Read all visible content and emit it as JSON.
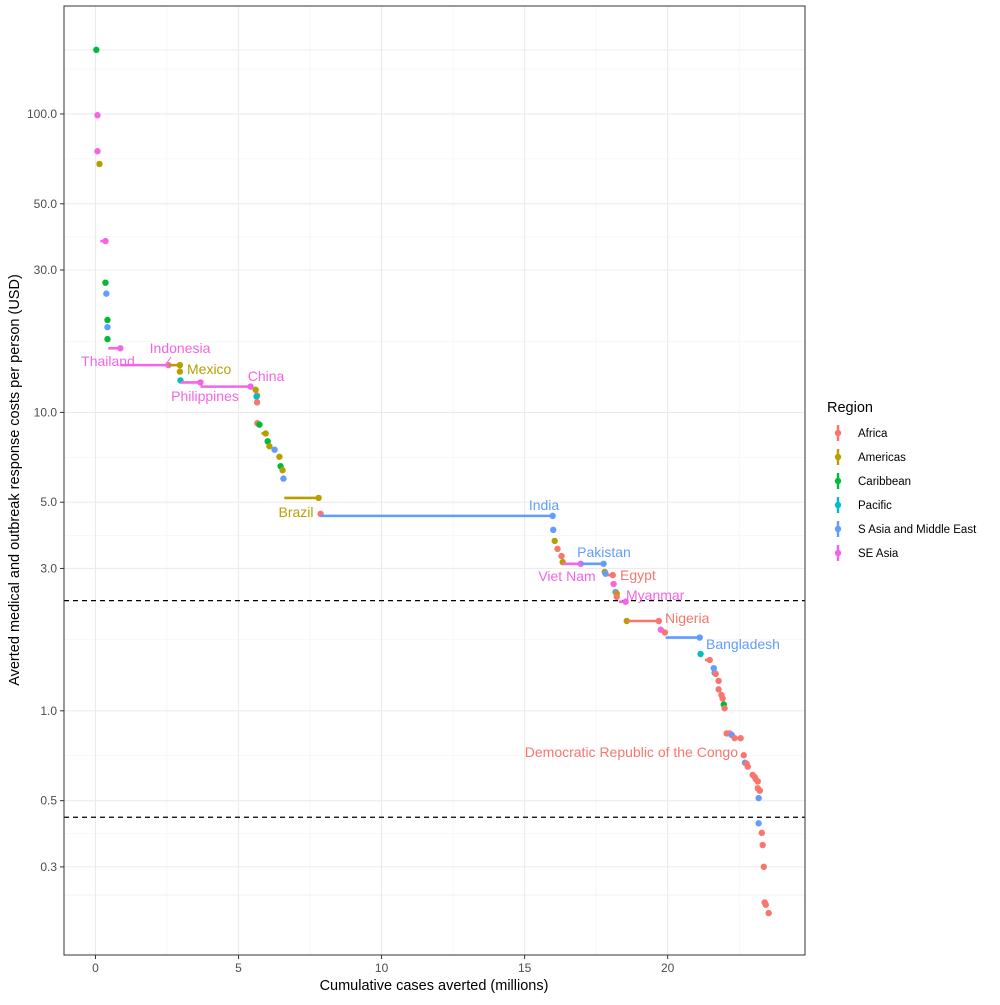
{
  "chart_data": {
    "type": "scatter",
    "xlabel": "Cumulative cases averted (millions)",
    "ylabel": "Averted medical and outbreak response costs per person (USD)",
    "x_scale": "linear",
    "y_scale": "log",
    "xlim": [
      -1.1,
      24.8
    ],
    "ylim": [
      0.152,
      230
    ],
    "x_ticks": [
      0,
      5,
      10,
      15,
      20
    ],
    "x_tick_labels": [
      "0",
      "5",
      "10",
      "15",
      "20"
    ],
    "y_ticks": [
      0.3,
      0.5,
      1.0,
      3.0,
      5.0,
      10.0,
      30.0,
      50.0,
      100.0
    ],
    "y_tick_labels": [
      "0.3",
      "0.5",
      "1.0",
      "3.0",
      "5.0",
      "10.0",
      "30.0",
      "50.0",
      "100.0"
    ],
    "grid": true,
    "reference_lines_y": [
      2.34,
      0.44
    ],
    "legend": {
      "title": "Region",
      "placement": "right",
      "entries": [
        "Africa",
        "Americas",
        "Caribbean",
        "Pacific",
        "S Asia and Middle East",
        "SE Asia"
      ],
      "colors": [
        "#F8766D",
        "#B79F00",
        "#00BA38",
        "#00BFC4",
        "#619CFF",
        "#F564E3"
      ]
    },
    "series_note": "each point: segment from x0 to x1 (cumulative cases) at cost y, region index r",
    "points": [
      {
        "x0": 0.03,
        "x1": 0.03,
        "y": 164,
        "r": 2
      },
      {
        "x0": 0.07,
        "x1": 0.07,
        "y": 99,
        "r": 5
      },
      {
        "x0": 0.07,
        "x1": 0.07,
        "y": 75,
        "r": 5
      },
      {
        "x0": 0.12,
        "x1": 0.14,
        "y": 68,
        "r": 1
      },
      {
        "x0": 0.17,
        "x1": 0.35,
        "y": 37.5,
        "r": 5
      },
      {
        "x0": 0.35,
        "x1": 0.35,
        "y": 27.2,
        "r": 2
      },
      {
        "x0": 0.38,
        "x1": 0.38,
        "y": 25,
        "r": 4
      },
      {
        "x0": 0.42,
        "x1": 0.42,
        "y": 20.4,
        "r": 2
      },
      {
        "x0": 0.42,
        "x1": 0.42,
        "y": 19.3,
        "r": 4
      },
      {
        "x0": 0.42,
        "x1": 0.42,
        "y": 17.6,
        "r": 2
      },
      {
        "x0": 0.45,
        "x1": 0.87,
        "y": 16.4,
        "r": 5,
        "label": "Thailand"
      },
      {
        "x0": 0.87,
        "x1": 2.55,
        "y": 14.4,
        "r": 5,
        "label": "Indonesia"
      },
      {
        "x0": 2.55,
        "x1": 2.95,
        "y": 14.4,
        "r": 1,
        "label": "Mexico"
      },
      {
        "x0": 2.95,
        "x1": 2.95,
        "y": 13.7,
        "r": 1
      },
      {
        "x0": 2.97,
        "x1": 2.97,
        "y": 12.8,
        "r": 3
      },
      {
        "x0": 2.97,
        "x1": 3.67,
        "y": 12.6,
        "r": 5,
        "label": "Philippines"
      },
      {
        "x0": 3.67,
        "x1": 5.42,
        "y": 12.2,
        "r": 5,
        "label": "China"
      },
      {
        "x0": 5.5,
        "x1": 5.6,
        "y": 11.9,
        "r": 1
      },
      {
        "x0": 5.65,
        "x1": 5.65,
        "y": 11.4,
        "r": 0
      },
      {
        "x0": 5.63,
        "x1": 5.63,
        "y": 11.3,
        "r": 3
      },
      {
        "x0": 5.65,
        "x1": 5.65,
        "y": 10.8,
        "r": 0
      },
      {
        "x0": 5.66,
        "x1": 5.66,
        "y": 9.2,
        "r": 0
      },
      {
        "x0": 5.73,
        "x1": 5.73,
        "y": 9.1,
        "r": 2
      },
      {
        "x0": 5.8,
        "x1": 5.95,
        "y": 8.5,
        "r": 1
      },
      {
        "x0": 6.02,
        "x1": 6.02,
        "y": 8.0,
        "r": 2
      },
      {
        "x0": 6.08,
        "x1": 6.08,
        "y": 7.7,
        "r": 1
      },
      {
        "x0": 6.26,
        "x1": 6.26,
        "y": 7.5,
        "r": 4
      },
      {
        "x0": 6.33,
        "x1": 6.43,
        "y": 7.1,
        "r": 1
      },
      {
        "x0": 6.47,
        "x1": 6.47,
        "y": 6.6,
        "r": 2
      },
      {
        "x0": 6.54,
        "x1": 6.54,
        "y": 6.4,
        "r": 1
      },
      {
        "x0": 6.57,
        "x1": 6.57,
        "y": 6.0,
        "r": 4
      },
      {
        "x0": 6.6,
        "x1": 7.8,
        "y": 5.17,
        "r": 1,
        "label": "Brazil"
      },
      {
        "x0": 7.87,
        "x1": 7.87,
        "y": 4.57,
        "r": 0
      },
      {
        "x0": 7.87,
        "x1": 15.98,
        "y": 4.5,
        "r": 4,
        "label": "India"
      },
      {
        "x0": 16.0,
        "x1": 16.0,
        "y": 4.04,
        "r": 4
      },
      {
        "x0": 16.05,
        "x1": 16.05,
        "y": 3.71,
        "r": 1
      },
      {
        "x0": 16.15,
        "x1": 16.15,
        "y": 3.49,
        "r": 0
      },
      {
        "x0": 16.29,
        "x1": 16.29,
        "y": 3.3,
        "r": 0
      },
      {
        "x0": 16.33,
        "x1": 16.33,
        "y": 3.15,
        "r": 1
      },
      {
        "x0": 16.33,
        "x1": 16.96,
        "y": 3.11,
        "r": 5,
        "label": "Viet Nam"
      },
      {
        "x0": 16.96,
        "x1": 17.76,
        "y": 3.11,
        "r": 4,
        "label": "Pakistan"
      },
      {
        "x0": 17.8,
        "x1": 17.8,
        "y": 2.92,
        "r": 1
      },
      {
        "x0": 17.83,
        "x1": 17.83,
        "y": 2.88,
        "r": 4
      },
      {
        "x0": 17.9,
        "x1": 18.08,
        "y": 2.85,
        "r": 0,
        "label": "Egypt"
      },
      {
        "x0": 18.11,
        "x1": 18.11,
        "y": 2.66,
        "r": 5
      },
      {
        "x0": 18.18,
        "x1": 18.18,
        "y": 2.5,
        "r": 4
      },
      {
        "x0": 18.22,
        "x1": 18.22,
        "y": 2.47,
        "r": 1
      },
      {
        "x0": 18.22,
        "x1": 18.22,
        "y": 2.41,
        "r": 0
      },
      {
        "x0": 18.3,
        "x1": 18.53,
        "y": 2.32,
        "r": 5,
        "label": "Myanmar"
      },
      {
        "x0": 18.57,
        "x1": 18.57,
        "y": 2.0,
        "r": 1
      },
      {
        "x0": 18.57,
        "x1": 19.69,
        "y": 2.0,
        "r": 0,
        "label": "Nigeria"
      },
      {
        "x0": 19.76,
        "x1": 19.76,
        "y": 1.87,
        "r": 5
      },
      {
        "x0": 19.9,
        "x1": 19.9,
        "y": 1.83,
        "r": 0
      },
      {
        "x0": 19.93,
        "x1": 21.12,
        "y": 1.76,
        "r": 4,
        "label": "Bangladesh"
      },
      {
        "x0": 21.15,
        "x1": 21.15,
        "y": 1.55,
        "r": 3
      },
      {
        "x0": 21.3,
        "x1": 21.47,
        "y": 1.48,
        "r": 0
      },
      {
        "x0": 21.61,
        "x1": 21.61,
        "y": 1.39,
        "r": 4
      },
      {
        "x0": 21.64,
        "x1": 21.64,
        "y": 1.34,
        "r": 4
      },
      {
        "x0": 21.68,
        "x1": 21.68,
        "y": 1.33,
        "r": 0
      },
      {
        "x0": 21.78,
        "x1": 21.78,
        "y": 1.26,
        "r": 0
      },
      {
        "x0": 21.78,
        "x1": 21.78,
        "y": 1.18,
        "r": 0
      },
      {
        "x0": 21.88,
        "x1": 21.88,
        "y": 1.13,
        "r": 0
      },
      {
        "x0": 21.92,
        "x1": 21.92,
        "y": 1.1,
        "r": 0
      },
      {
        "x0": 21.96,
        "x1": 21.96,
        "y": 1.05,
        "r": 2
      },
      {
        "x0": 21.99,
        "x1": 21.99,
        "y": 1.02,
        "r": 0
      },
      {
        "x0": 22.06,
        "x1": 22.06,
        "y": 0.84,
        "r": 0
      },
      {
        "x0": 22.17,
        "x1": 22.17,
        "y": 0.84,
        "r": 0
      },
      {
        "x0": 22.24,
        "x1": 22.24,
        "y": 0.83,
        "r": 4
      },
      {
        "x0": 22.34,
        "x1": 22.34,
        "y": 0.81,
        "r": 0
      },
      {
        "x0": 22.4,
        "x1": 22.55,
        "y": 0.81,
        "r": 0
      },
      {
        "x0": 22.66,
        "x1": 22.66,
        "y": 0.71,
        "r": 0,
        "label": "Democratic Republic of the Congo"
      },
      {
        "x0": 22.7,
        "x1": 22.7,
        "y": 0.67,
        "r": 4
      },
      {
        "x0": 22.76,
        "x1": 22.76,
        "y": 0.665,
        "r": 0
      },
      {
        "x0": 22.8,
        "x1": 22.8,
        "y": 0.65,
        "r": 0
      },
      {
        "x0": 22.97,
        "x1": 22.97,
        "y": 0.61,
        "r": 0
      },
      {
        "x0": 23.04,
        "x1": 23.04,
        "y": 0.6,
        "r": 0
      },
      {
        "x0": 23.08,
        "x1": 23.08,
        "y": 0.59,
        "r": 0
      },
      {
        "x0": 23.15,
        "x1": 23.15,
        "y": 0.58,
        "r": 0
      },
      {
        "x0": 23.15,
        "x1": 23.15,
        "y": 0.55,
        "r": 0
      },
      {
        "x0": 23.22,
        "x1": 23.22,
        "y": 0.54,
        "r": 0
      },
      {
        "x0": 23.18,
        "x1": 23.18,
        "y": 0.51,
        "r": 4
      },
      {
        "x0": 23.18,
        "x1": 23.18,
        "y": 0.42,
        "r": 4
      },
      {
        "x0": 23.29,
        "x1": 23.29,
        "y": 0.39,
        "r": 0
      },
      {
        "x0": 23.32,
        "x1": 23.32,
        "y": 0.355,
        "r": 0
      },
      {
        "x0": 23.36,
        "x1": 23.36,
        "y": 0.3,
        "r": 0
      },
      {
        "x0": 23.39,
        "x1": 23.39,
        "y": 0.228,
        "r": 0
      },
      {
        "x0": 23.43,
        "x1": 23.43,
        "y": 0.224,
        "r": 0
      },
      {
        "x0": 23.53,
        "x1": 23.53,
        "y": 0.21,
        "r": 0
      }
    ]
  }
}
